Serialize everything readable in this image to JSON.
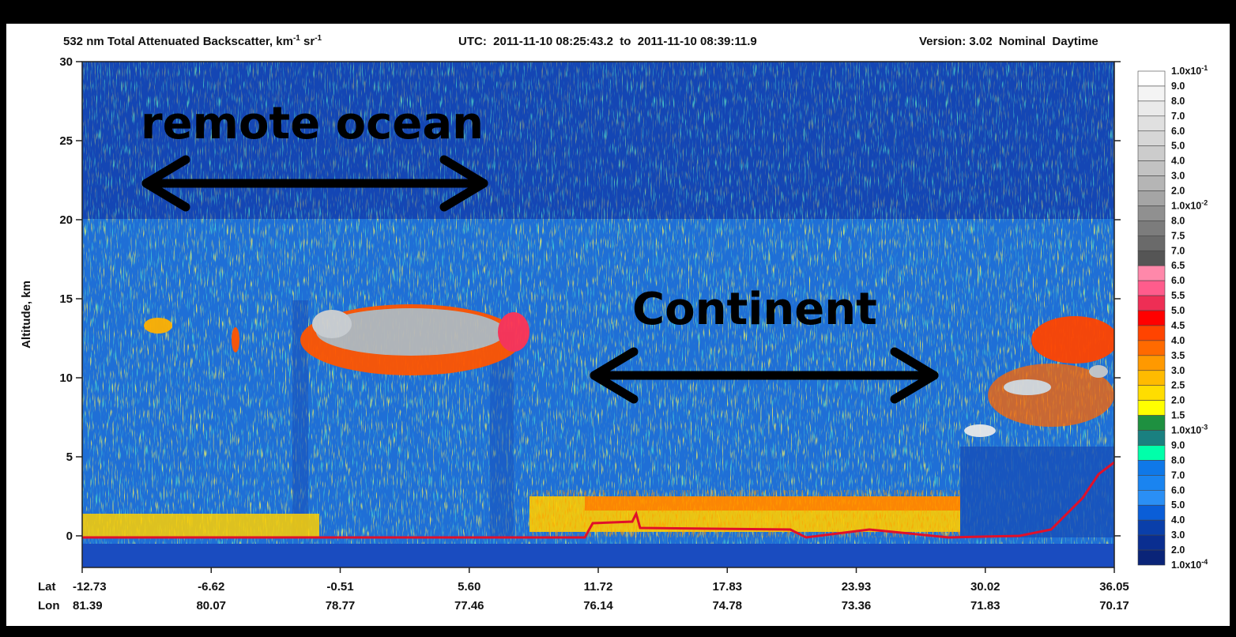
{
  "chart_data": {
    "type": "curtain",
    "title": [
      {
        "text": "532 nm Total Attenuated Backscatter, km"
      },
      {
        "text": "-1",
        "sup": true
      },
      {
        "text": " sr"
      },
      {
        "text": "-1",
        "sup": true
      }
    ],
    "time_range": "UTC:  2011-11-10 08:25:43.2  to  2011-11-10 08:39:11.9",
    "version": "Version: 3.02  Nominal  Daytime",
    "y_label": "Altitude, km",
    "ylim": [
      -2,
      30
    ],
    "yticks": [
      0,
      5,
      10,
      15,
      20,
      25,
      30
    ],
    "x_row_labels": [
      "Lat",
      "Lon"
    ],
    "lat": [
      "-12.73",
      "-6.62",
      "-0.51",
      "5.60",
      "11.72",
      "17.83",
      "23.93",
      "30.02",
      "36.05"
    ],
    "lon": [
      "81.39",
      "80.07",
      "78.77",
      "77.46",
      "76.14",
      "74.78",
      "73.36",
      "71.83",
      "70.17"
    ],
    "annotations": [
      "remote ocean",
      "Continent"
    ],
    "colorbar": {
      "labels": [
        {
          "text": "1.0x10",
          "exp": "-1"
        },
        {
          "text": "9.0"
        },
        {
          "text": "8.0"
        },
        {
          "text": "7.0"
        },
        {
          "text": "6.0"
        },
        {
          "text": "5.0"
        },
        {
          "text": "4.0"
        },
        {
          "text": "3.0"
        },
        {
          "text": "2.0"
        },
        {
          "text": "1.0x10",
          "exp": "-2"
        },
        {
          "text": "8.0"
        },
        {
          "text": "7.5"
        },
        {
          "text": "7.0"
        },
        {
          "text": "6.5"
        },
        {
          "text": "6.0"
        },
        {
          "text": "5.5"
        },
        {
          "text": "5.0"
        },
        {
          "text": "4.5"
        },
        {
          "text": "4.0"
        },
        {
          "text": "3.5"
        },
        {
          "text": "3.0"
        },
        {
          "text": "2.5"
        },
        {
          "text": "2.0"
        },
        {
          "text": "1.5"
        },
        {
          "text": "1.0x10",
          "exp": "-3"
        },
        {
          "text": "9.0"
        },
        {
          "text": "8.0"
        },
        {
          "text": "7.0"
        },
        {
          "text": "6.0"
        },
        {
          "text": "5.0"
        },
        {
          "text": "4.0"
        },
        {
          "text": "3.0"
        },
        {
          "text": "2.0"
        },
        {
          "text": "1.0x10",
          "exp": "-4"
        }
      ],
      "colors": [
        "#ffffff",
        "#f4f4f4",
        "#eaeaea",
        "#e0e0e0",
        "#d6d6d6",
        "#cccccc",
        "#c2c2c2",
        "#b5b5b5",
        "#a5a5a5",
        "#909090",
        "#7c7c7c",
        "#6a6a6a",
        "#555555",
        "#ff88aa",
        "#ff5c8c",
        "#ee2e55",
        "#ff0000",
        "#ff4400",
        "#ff6a00",
        "#ff9900",
        "#ffbb00",
        "#ffdd00",
        "#ffff00",
        "#1e9040",
        "#1a8080",
        "#00ffaa",
        "#0f78e8",
        "#1a84f0",
        "#2a8ff5",
        "#0a5ed8",
        "#0a3faa",
        "#0a2e90",
        "#0a2478"
      ]
    }
  }
}
